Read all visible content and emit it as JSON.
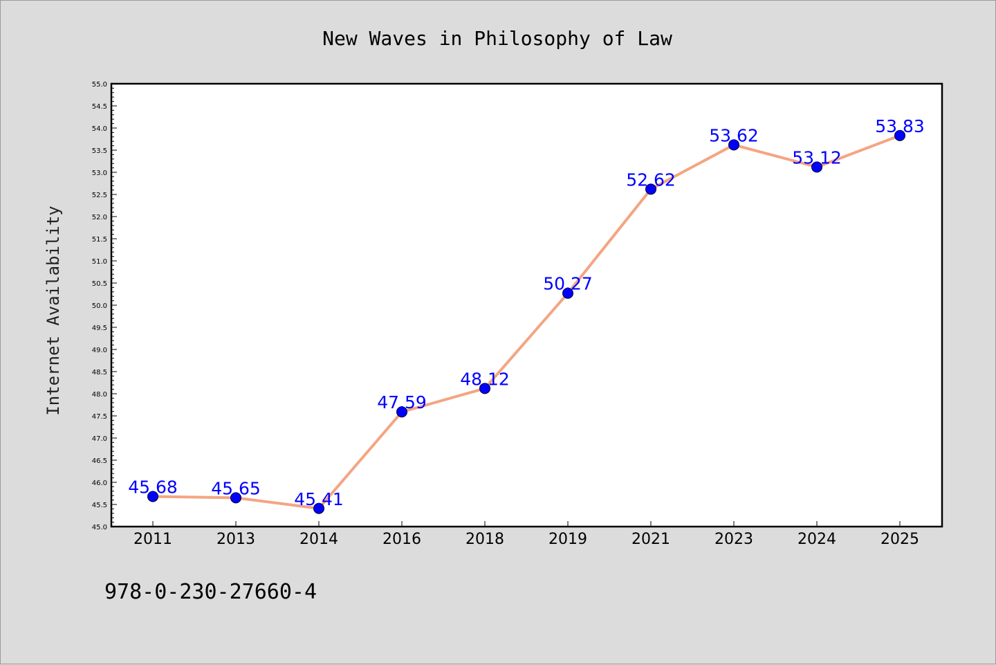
{
  "chart_data": {
    "type": "line",
    "title": "New Waves in Philosophy of Law",
    "ylabel": "Internet Availability",
    "xlabel": "",
    "categories": [
      "2011",
      "2013",
      "2014",
      "2016",
      "2018",
      "2019",
      "2021",
      "2023",
      "2024",
      "2025"
    ],
    "values": [
      45.68,
      45.65,
      45.41,
      47.59,
      48.12,
      50.27,
      52.62,
      53.62,
      53.12,
      53.83
    ],
    "data_labels": [
      "45.68",
      "45.65",
      "45.41",
      "47.59",
      "48.12",
      "50.27",
      "52.62",
      "53.62",
      "53.12",
      "53.83"
    ],
    "ylim": [
      45.0,
      55.0
    ],
    "ytick_labels": [
      "45.0",
      "45.5",
      "46.0",
      "46.5",
      "47.0",
      "47.5",
      "48.0",
      "48.5",
      "49.0",
      "49.5",
      "50.0",
      "50.5",
      "51.0",
      "51.5",
      "52.0",
      "52.5",
      "53.0",
      "53.5",
      "54.0",
      "54.5",
      "55.0"
    ],
    "grid": false,
    "line_color": "#f4a582",
    "marker_color": "#0000ff",
    "label_color": "#0000ff",
    "annotation": "978-0-230-27660-4"
  }
}
